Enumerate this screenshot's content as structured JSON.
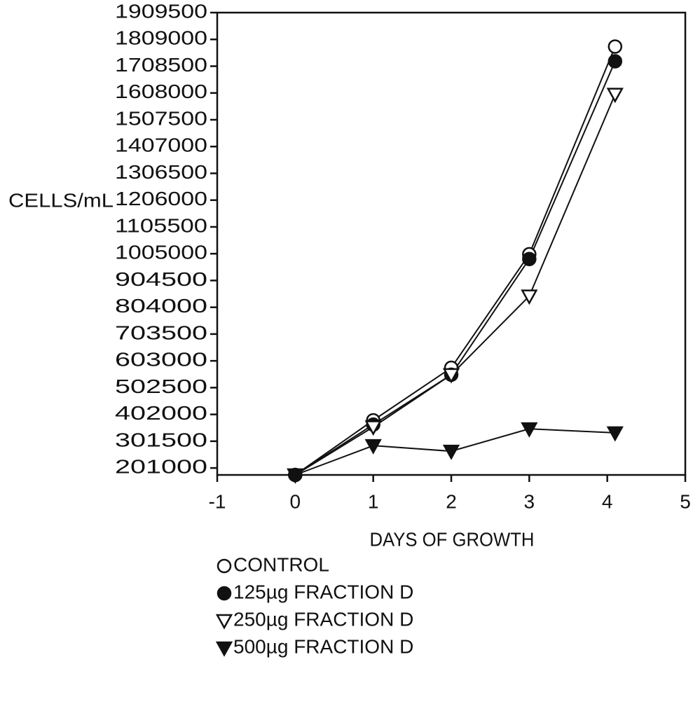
{
  "chart_data": {
    "type": "line",
    "y_label": "CELLS/mL",
    "x_label": "DAYS OF GROWTH",
    "x": [
      0,
      1,
      2,
      3,
      4.1
    ],
    "series": [
      {
        "name": "CONTROL",
        "color": "#111111",
        "marker": "circle",
        "filled": false,
        "values": [
          175000,
          380000,
          577000,
          1003000,
          1782000
        ]
      },
      {
        "name": "125µg FRACTION D",
        "color": "#111111",
        "marker": "circle",
        "filled": true,
        "values": [
          175000,
          364000,
          551000,
          985000,
          1727000
        ]
      },
      {
        "name": "250µg FRACTION D",
        "color": "#111111",
        "marker": "triangle-down",
        "filled": false,
        "values": [
          175000,
          355000,
          551000,
          846000,
          1603000
        ]
      },
      {
        "name": "500µg FRACTION D",
        "color": "#111111",
        "marker": "triangle-down",
        "filled": true,
        "values": [
          175000,
          285000,
          264000,
          348000,
          333000
        ]
      }
    ],
    "xlim": [
      -1,
      5
    ],
    "xticks": [
      -1,
      0,
      1,
      2,
      3,
      4,
      5
    ],
    "ylim": [
      175000,
      1909500
    ],
    "yticks": [
      201000,
      301500,
      402000,
      502500,
      603000,
      703500,
      804000,
      904500,
      1005000,
      1105500,
      1206000,
      1306500,
      1407000,
      1507500,
      1608000,
      1708500,
      1809000,
      1909500
    ],
    "grid": false
  }
}
